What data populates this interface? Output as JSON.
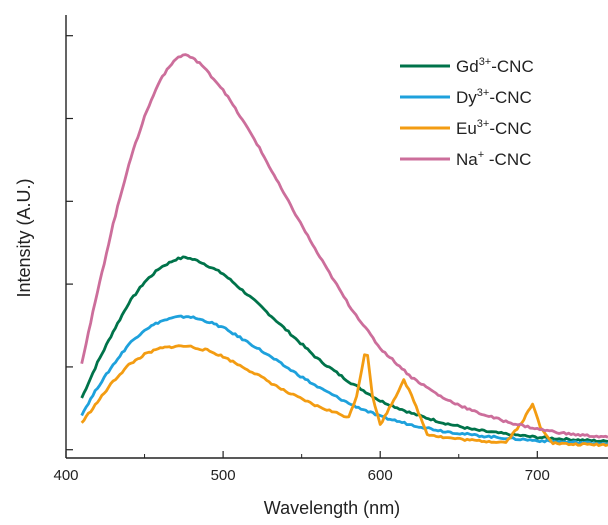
{
  "chart_data": {
    "type": "line",
    "title": "",
    "xlabel": "Wavelength (nm)",
    "ylabel": "Intensity (A.U.)",
    "xlim": [
      400,
      745
    ],
    "ylim": [
      -0.2,
      10.5
    ],
    "xticks": [
      400,
      500,
      600,
      700
    ],
    "yticks_count": 6,
    "y_tick_labels": false,
    "grid": false,
    "legend_placement": "top-right",
    "series": [
      {
        "name": "Gd³⁺-CNC",
        "legend_base": "Gd",
        "legend_sup": "3+",
        "legend_suffix": "-CNC",
        "color": "#00734a",
        "x": [
          410,
          420,
          430,
          440,
          450,
          460,
          470,
          476,
          485,
          500,
          520,
          540,
          560,
          580,
          600,
          620,
          640,
          660,
          680,
          700,
          720,
          745
        ],
        "y": [
          1.25,
          2.1,
          2.85,
          3.55,
          4.05,
          4.4,
          4.6,
          4.65,
          4.55,
          4.25,
          3.6,
          2.9,
          2.2,
          1.65,
          1.18,
          0.88,
          0.65,
          0.48,
          0.38,
          0.3,
          0.25,
          0.2
        ]
      },
      {
        "name": "Dy³⁺-CNC",
        "legend_base": "Dy",
        "legend_sup": "3+",
        "legend_suffix": "-CNC",
        "color": "#1ea1dc",
        "x": [
          410,
          420,
          430,
          440,
          450,
          460,
          470,
          478,
          490,
          500,
          520,
          540,
          560,
          580,
          600,
          620,
          640,
          660,
          680,
          700,
          720,
          745
        ],
        "y": [
          0.85,
          1.5,
          2.05,
          2.55,
          2.9,
          3.1,
          3.2,
          3.22,
          3.1,
          2.95,
          2.5,
          2.0,
          1.52,
          1.12,
          0.8,
          0.6,
          0.45,
          0.35,
          0.28,
          0.22,
          0.18,
          0.15
        ]
      },
      {
        "name": "Eu³⁺-CNC",
        "legend_base": "Eu",
        "legend_sup": "3+",
        "legend_suffix": "-CNC",
        "color": "#f39c12",
        "x": [
          410,
          420,
          430,
          440,
          450,
          460,
          470,
          478,
          490,
          500,
          520,
          540,
          560,
          580,
          585,
          590,
          592,
          595,
          600,
          610,
          615,
          620,
          630,
          640,
          660,
          680,
          690,
          697,
          702,
          710,
          720,
          745
        ],
        "y": [
          0.65,
          1.15,
          1.65,
          2.05,
          2.3,
          2.45,
          2.5,
          2.5,
          2.4,
          2.25,
          1.85,
          1.4,
          1.05,
          0.78,
          1.3,
          2.3,
          2.3,
          1.3,
          0.6,
          1.3,
          1.7,
          1.3,
          0.38,
          0.3,
          0.22,
          0.18,
          0.65,
          1.1,
          0.55,
          0.16,
          0.13,
          0.12
        ]
      },
      {
        "name": "Na⁺ -CNC",
        "legend_base": "Na",
        "legend_sup": "+",
        "legend_suffix": " -CNC",
        "color": "#cc6e9b",
        "x": [
          410,
          420,
          430,
          440,
          450,
          460,
          470,
          476,
          485,
          500,
          520,
          540,
          560,
          580,
          600,
          620,
          640,
          660,
          680,
          700,
          720,
          745
        ],
        "y": [
          2.1,
          3.8,
          5.45,
          6.9,
          8.05,
          8.95,
          9.45,
          9.55,
          9.35,
          8.7,
          7.5,
          6.1,
          4.75,
          3.5,
          2.45,
          1.75,
          1.25,
          0.92,
          0.68,
          0.5,
          0.38,
          0.3
        ]
      }
    ]
  }
}
